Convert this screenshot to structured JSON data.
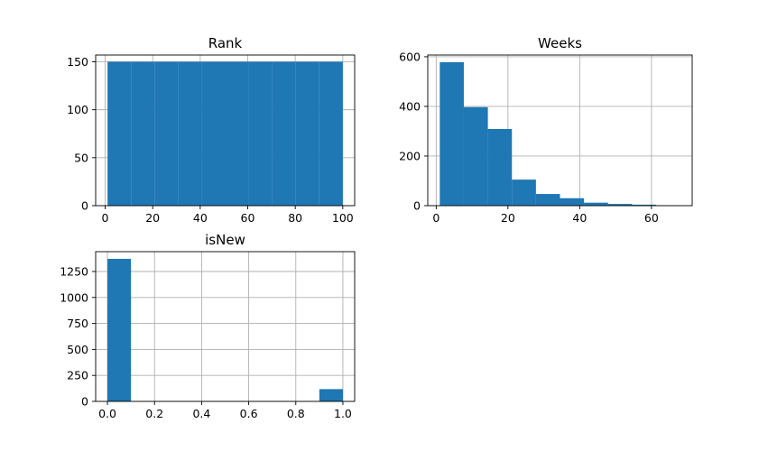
{
  "chart_data": [
    {
      "type": "bar",
      "title": "Rank",
      "bins": [
        [
          1,
          10.9
        ],
        [
          10.9,
          20.8
        ],
        [
          20.8,
          30.7
        ],
        [
          30.7,
          40.6
        ],
        [
          40.6,
          50.5
        ],
        [
          50.5,
          60.4
        ],
        [
          60.4,
          70.3
        ],
        [
          70.3,
          80.2
        ],
        [
          80.2,
          90.1
        ],
        [
          90.1,
          100
        ]
      ],
      "values": [
        150,
        150,
        150,
        150,
        150,
        150,
        150,
        150,
        150,
        150
      ],
      "xlim": [
        -4,
        105
      ],
      "ylim": [
        0,
        157
      ],
      "xticks": [
        0,
        20,
        40,
        60,
        80,
        100
      ],
      "xtick_labels": [
        "0",
        "20",
        "40",
        "60",
        "80",
        "100"
      ],
      "yticks": [
        0,
        50,
        100,
        150
      ],
      "ytick_labels": [
        "0",
        "50",
        "100",
        "150"
      ],
      "grid": true,
      "color": "#1f77b4"
    },
    {
      "type": "bar",
      "title": "Weeks",
      "bins": [
        [
          1,
          7.7
        ],
        [
          7.7,
          14.4
        ],
        [
          14.4,
          21.1
        ],
        [
          21.1,
          27.8
        ],
        [
          27.8,
          34.5
        ],
        [
          34.5,
          41.2
        ],
        [
          41.2,
          47.9
        ],
        [
          47.9,
          54.6
        ],
        [
          54.6,
          61.3
        ],
        [
          61.3,
          68
        ]
      ],
      "values": [
        578,
        397,
        309,
        105,
        47,
        30,
        12,
        7,
        4,
        1
      ],
      "xlim": [
        -2.35,
        71.35
      ],
      "ylim": [
        0,
        607
      ],
      "xticks": [
        0,
        20,
        40,
        60
      ],
      "xtick_labels": [
        "0",
        "20",
        "40",
        "60"
      ],
      "yticks": [
        0,
        200,
        400,
        600
      ],
      "ytick_labels": [
        "0",
        "200",
        "400",
        "600"
      ],
      "grid": true,
      "color": "#1f77b4"
    },
    {
      "type": "bar",
      "title": "isNew",
      "bins": [
        [
          0,
          0.1
        ],
        [
          0.1,
          0.2
        ],
        [
          0.2,
          0.3
        ],
        [
          0.3,
          0.4
        ],
        [
          0.4,
          0.5
        ],
        [
          0.5,
          0.6
        ],
        [
          0.6,
          0.7
        ],
        [
          0.7,
          0.8
        ],
        [
          0.8,
          0.9
        ],
        [
          0.9,
          1.0
        ]
      ],
      "values": [
        1372,
        0,
        0,
        0,
        0,
        0,
        0,
        0,
        0,
        118
      ],
      "xlim": [
        -0.05,
        1.05
      ],
      "ylim": [
        0,
        1441
      ],
      "xticks": [
        0,
        0.2,
        0.4,
        0.6,
        0.8,
        1.0
      ],
      "xtick_labels": [
        "0.0",
        "0.2",
        "0.4",
        "0.6",
        "0.8",
        "1.0"
      ],
      "yticks": [
        0,
        250,
        500,
        750,
        1000,
        1250
      ],
      "ytick_labels": [
        "0",
        "250",
        "500",
        "750",
        "1000",
        "1250"
      ],
      "grid": true,
      "color": "#1f77b4"
    }
  ]
}
